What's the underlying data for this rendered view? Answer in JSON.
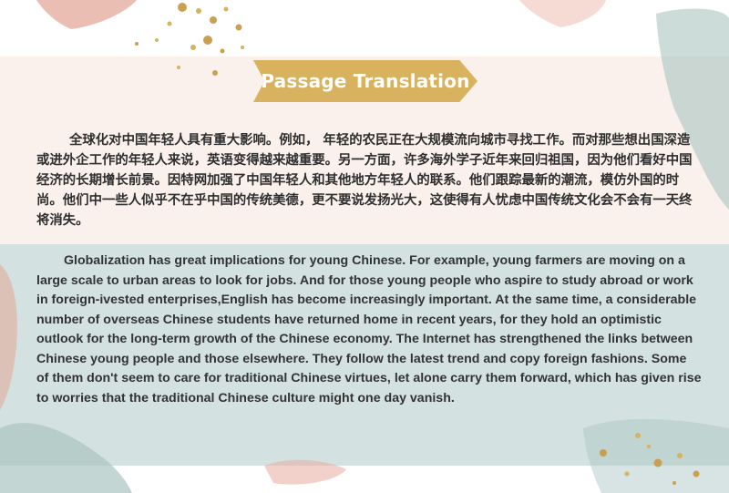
{
  "slide": {
    "title": "Passage Translation",
    "chinese_paragraph": "全球化对中国年轻人具有重大影响。例如， 年轻的农民正在大规模流向城市寻找工作。而对那些想出国深造或进外企工作的年轻人来说，英语变得越来越重要。另一方面，许多海外学子近年来回归祖国，因为他们看好中国经济的长期增长前景。因特网加强了中国年轻人和其他地方年轻人的联系。他们跟踪最新的潮流，模仿外国的时尚。他们中一些人似乎不在乎中国的传统美德，更不要说发扬光大，这使得有人忧虑中国传统文化会不会有一天终将消失。",
    "english_paragraph": "Globalization has great implications for young Chinese. For example, young farmers are moving on a large scale to urban areas to look for jobs. And for those young people who aspire to study abroad or work in foreign-ivested enterprises,English has become increasingly important. At the same time, a considerable number of overseas Chinese students have returned home in recent years, for they hold an optimistic outlook for the long-term growth of the Chinese economy. The Internet has strengthened the links between Chinese young people and those elsewhere. They follow the latest trend and copy foreign fashions. Some of them don't seem to care for traditional Chinese virtues, let alone carry them forward, which has given rise to worries that the traditional Chinese culture might one day vanish."
  },
  "colors": {
    "banner": "#d8b25e",
    "top_band": "#fbf1ec",
    "bottom_band": "#d3e2e0",
    "pink_brush": "#e8b3a6",
    "teal_brush": "#a9c4c0",
    "gold_dots": "#c9a050"
  }
}
